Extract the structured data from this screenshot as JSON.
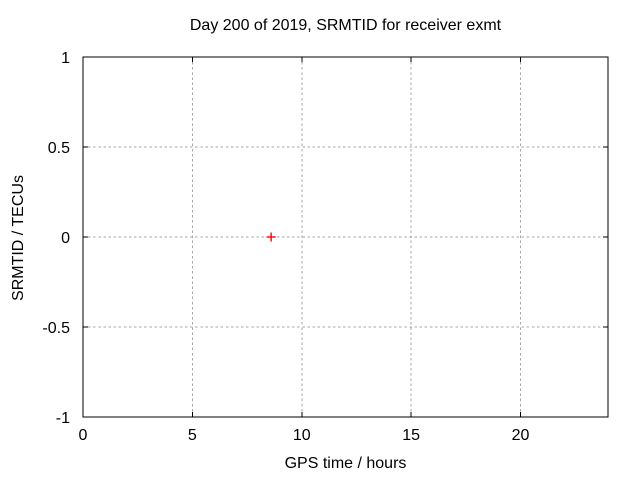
{
  "chart_data": {
    "type": "scatter",
    "title": "Day 200 of 2019, SRMTID for receiver exmt",
    "xlabel": "GPS time / hours",
    "ylabel": "SRMTID / TECUs",
    "xlim": [
      0,
      24
    ],
    "ylim": [
      -1,
      1
    ],
    "xticks": [
      0,
      5,
      10,
      15,
      20
    ],
    "xtick_labels": [
      "0",
      "5",
      "10",
      "15",
      "20"
    ],
    "yticks": [
      -1,
      -0.5,
      0,
      0.5,
      1
    ],
    "ytick_labels": [
      "-1",
      "-0.5",
      "0",
      "0.5",
      "1"
    ],
    "grid": true,
    "legend": "none",
    "series": [
      {
        "name": "SRMTID",
        "marker": "plus",
        "color": "#ff0000",
        "points": [
          {
            "x": 8.6,
            "y": 0.0
          }
        ]
      }
    ],
    "colors": {
      "background": "#ffffff",
      "border": "#000000",
      "grid": "#a6a6a6",
      "text": "#000000"
    }
  }
}
